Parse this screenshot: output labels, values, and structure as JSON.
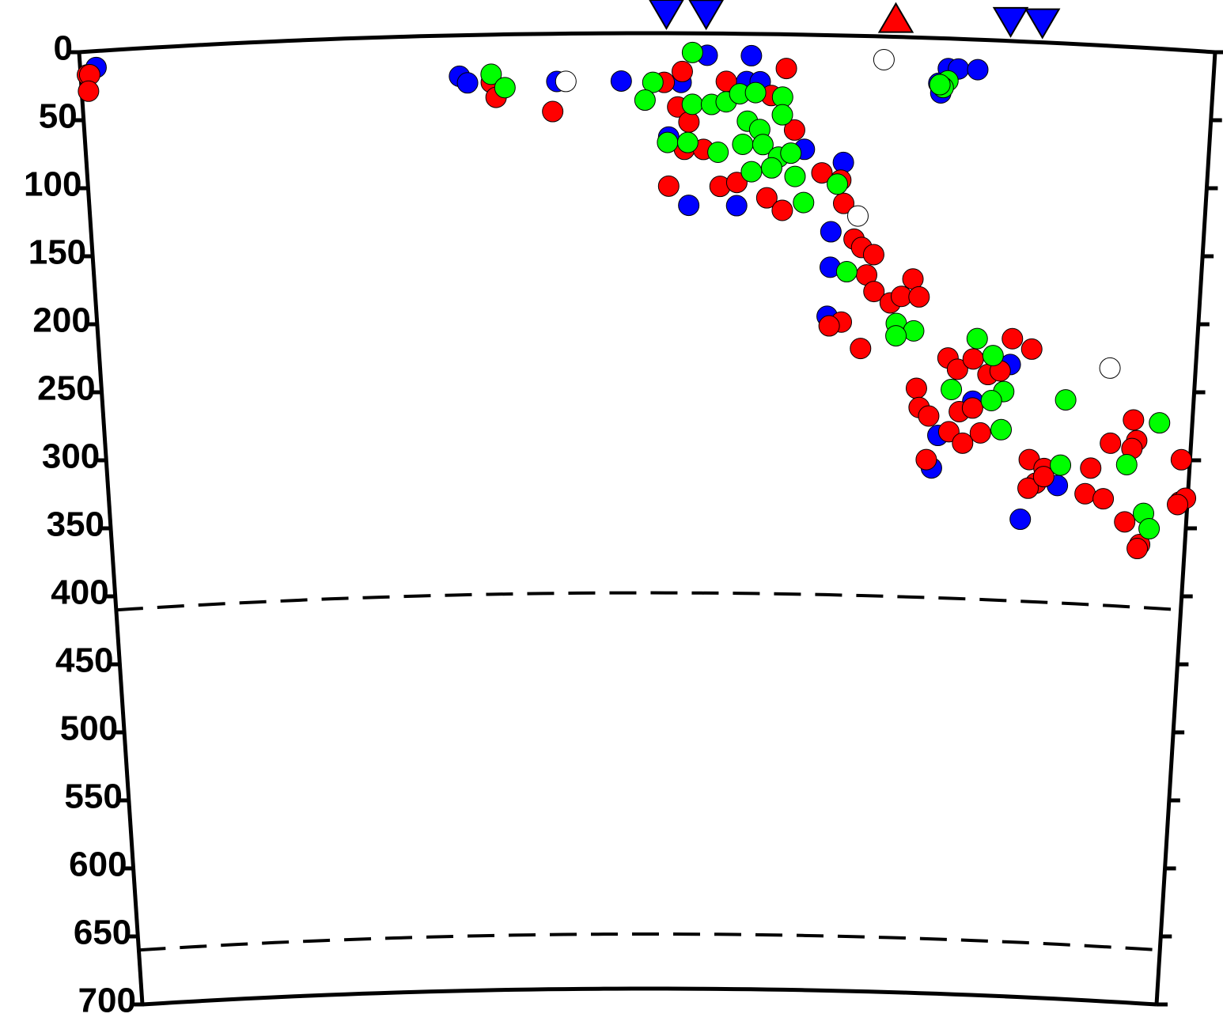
{
  "chart_data": {
    "type": "scatter",
    "xlim": [
      0,
      100
    ],
    "ylim": [
      0,
      700
    ],
    "yticks": [
      0,
      50,
      100,
      150,
      200,
      250,
      300,
      350,
      400,
      450,
      500,
      550,
      600,
      650,
      700
    ],
    "reference_lines": [
      410,
      660
    ],
    "surface_markers": [
      {
        "color": "#0000ff",
        "symbol": "triangle-down",
        "x": [
          51.7,
          55.2,
          82.0,
          84.8
        ]
      },
      {
        "color": "#ff0000",
        "symbol": "triangle-up",
        "x": [
          71.9
        ]
      }
    ],
    "series": [
      {
        "color": "#0000ff",
        "x": [
          1.4,
          33.4,
          34.1,
          42,
          47.7,
          53,
          51.9,
          53.7,
          55.3,
          59.2,
          58.8,
          60,
          58,
          64,
          67.5,
          66.5,
          66.5,
          66.3,
          76.6,
          77.5,
          79.2,
          75.8,
          76,
          83.1,
          79.8,
          76.7,
          76.2,
          87.9,
          84.6
        ],
        "values": [
          12,
          30,
          35,
          35,
          35,
          36,
          76,
          126,
          16,
          16,
          35,
          35,
          126,
          84,
          93,
          144,
          170,
          206,
          22,
          22,
          22,
          33,
          40,
          237,
          265,
          291,
          315,
          324,
          350
        ]
      },
      {
        "color": "#ff0000",
        "x": [
          0.6,
          0.8,
          0.6,
          36.2,
          36.6,
          41.6,
          53.1,
          51.5,
          52.7,
          53.7,
          53.3,
          51.9,
          55,
          56.5,
          57,
          58,
          62.3,
          61,
          63.1,
          60.7,
          62.1,
          65.6,
          67.3,
          67.6,
          68.6,
          69.3,
          70.4,
          69.8,
          70.5,
          72,
          73,
          74,
          74.6,
          67.6,
          66.5,
          69.4,
          74.6,
          74.9,
          75.8,
          77.4,
          78.3,
          79.7,
          78.6,
          77.7,
          79,
          80.6,
          81.1,
          82.2,
          79.8,
          75.7,
          83.2,
          85,
          85.2,
          86.6,
          85.9,
          85.2,
          86.6,
          90.9,
          90.5,
          92.2,
          92.6,
          94.6,
          95,
          94.6,
          94.3,
          95.8,
          95.6,
          99.2,
          99.3,
          99.8,
          99.1
        ],
        "values": [
          17,
          17,
          29,
          35,
          46,
          57,
          28,
          36,
          54,
          65,
          85,
          112,
          85,
          112,
          35,
          109,
          25,
          45,
          70,
          120,
          129,
          101,
          106,
          123,
          149,
          155,
          160,
          175,
          187,
          195,
          190,
          177,
          190,
          210,
          213,
          229,
          257,
          271,
          277,
          234,
          242,
          234,
          273,
          288,
          296,
          288,
          245,
          242,
          270,
          309,
          218,
          225,
          306,
          312,
          323,
          327,
          318,
          310,
          329,
          332,
          291,
          273,
          288,
          294,
          348,
          364,
          367,
          300,
          331,
          328,
          333
        ]
      },
      {
        "color": "#00ff00",
        "x": [
          54,
          36.2,
          37.4,
          50.5,
          49.8,
          54,
          55.7,
          57,
          58.2,
          59.6,
          62,
          62,
          58.9,
          60,
          58.5,
          60.3,
          61.7,
          62.8,
          63.2,
          61.1,
          59.3,
          64,
          56.3,
          51.8,
          53.6,
          67,
          68,
          72.6,
          74.2,
          72.6,
          76.6,
          76.2,
          75.9,
          80,
          81.5,
          77.8,
          82.6,
          81.5,
          82.5,
          88.3,
          88.1,
          94.2,
          97,
          96,
          96.6
        ],
        "values": [
          14,
          29,
          39,
          36,
          49,
          52,
          52,
          50,
          44,
          43,
          46,
          59,
          64,
          70,
          81,
          81,
          90,
          87,
          104,
          98,
          101,
          123,
          87,
          80,
          80,
          109,
          173,
          210,
          215,
          219,
          31,
          36,
          34,
          219,
          231,
          257,
          257,
          264,
          285,
          261,
          309,
          306,
          274,
          341,
          352
        ]
      },
      {
        "color": "#ffffff",
        "x": [
          42.8,
          70.9,
          68.9,
          92.2
        ],
        "values": [
          35,
          17,
          132,
          236
        ]
      }
    ]
  }
}
